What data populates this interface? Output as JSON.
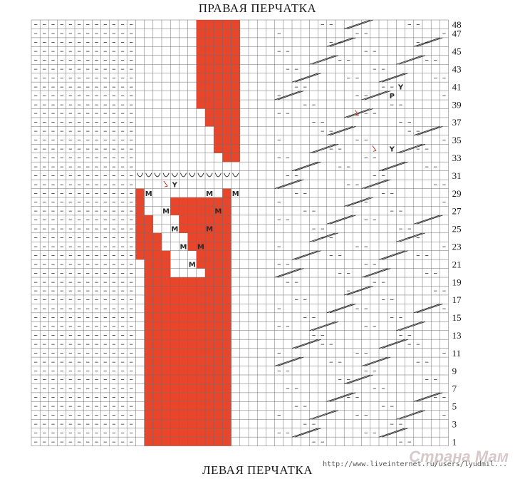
{
  "header": {
    "title": "ПРАВАЯ ПЕРЧАТКА"
  },
  "footer": {
    "title": "ЛЕВАЯ ПЕРЧАТКА"
  },
  "grid": {
    "columns": 48,
    "rows": 48,
    "row_labels": [
      "1",
      "3",
      "5",
      "7",
      "9",
      "11",
      "13",
      "15",
      "17",
      "19",
      "21",
      "23",
      "25",
      "27",
      "29",
      "31",
      "33",
      "35",
      "37",
      "39",
      "41",
      "43",
      "45",
      "47",
      "48"
    ]
  },
  "colors": {
    "grid_line": "#6d6d6d",
    "fill_red": "#e8452a",
    "symbol": "#2a2a2a",
    "accent_symbol": "#c0392b"
  },
  "symbols": {
    "purl": "–",
    "make_one": "M",
    "cast_on": "P",
    "decrease": "Y"
  },
  "watermark": {
    "brand": "Страна Мам",
    "url": "http://www.liveinternet.ru/users/lyudmil..."
  }
}
